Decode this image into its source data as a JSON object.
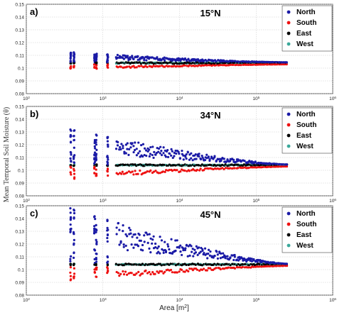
{
  "figure": {
    "ylabel": "Mean Temporal Soil Moisture (θ)",
    "xlabel_base": "Area [m",
    "xlabel_exp": "2",
    "xlabel_close": "]",
    "x_ticks": [
      {
        "value": 100,
        "base": "10",
        "exp": "2"
      },
      {
        "value": 1000,
        "base": "10",
        "exp": "3"
      },
      {
        "value": 10000,
        "base": "10",
        "exp": "4"
      },
      {
        "value": 100000,
        "base": "10",
        "exp": "5"
      },
      {
        "value": 1000000,
        "base": "10",
        "exp": "6"
      }
    ],
    "y_ticks": [
      "0.08",
      "0.09",
      "0.1",
      "0.11",
      "0.12",
      "0.13",
      "0.14",
      "0.15"
    ],
    "legend": [
      {
        "name": "North",
        "color": "#1a1aa6"
      },
      {
        "name": "South",
        "color": "#ee1111"
      },
      {
        "name": "East",
        "color": "#000000"
      },
      {
        "name": "West",
        "color": "#3aa89a"
      }
    ]
  },
  "chart_data": [
    {
      "type": "scatter",
      "panel_label": "a)",
      "latitude_label": "15°N",
      "xscale": "log",
      "xlim": [
        100,
        1000000
      ],
      "ylim": [
        0.08,
        0.15
      ],
      "grid": "on",
      "legend_position": "top-right",
      "north_spread": 0.008,
      "south_spread": 0.004,
      "east_level": 0.104,
      "base": 0.104
    },
    {
      "type": "scatter",
      "panel_label": "b)",
      "latitude_label": "34°N",
      "xscale": "log",
      "xlim": [
        100,
        1000000
      ],
      "ylim": [
        0.08,
        0.15
      ],
      "grid": "on",
      "legend_position": "top-right",
      "north_spread": 0.028,
      "south_spread": 0.01,
      "east_level": 0.104,
      "base": 0.104
    },
    {
      "type": "scatter",
      "panel_label": "c)",
      "latitude_label": "45°N",
      "xscale": "log",
      "xlim": [
        100,
        1000000
      ],
      "ylim": [
        0.08,
        0.15
      ],
      "grid": "on",
      "legend_position": "top-right",
      "north_spread": 0.045,
      "south_spread": 0.012,
      "east_level": 0.104,
      "base": 0.104
    }
  ]
}
